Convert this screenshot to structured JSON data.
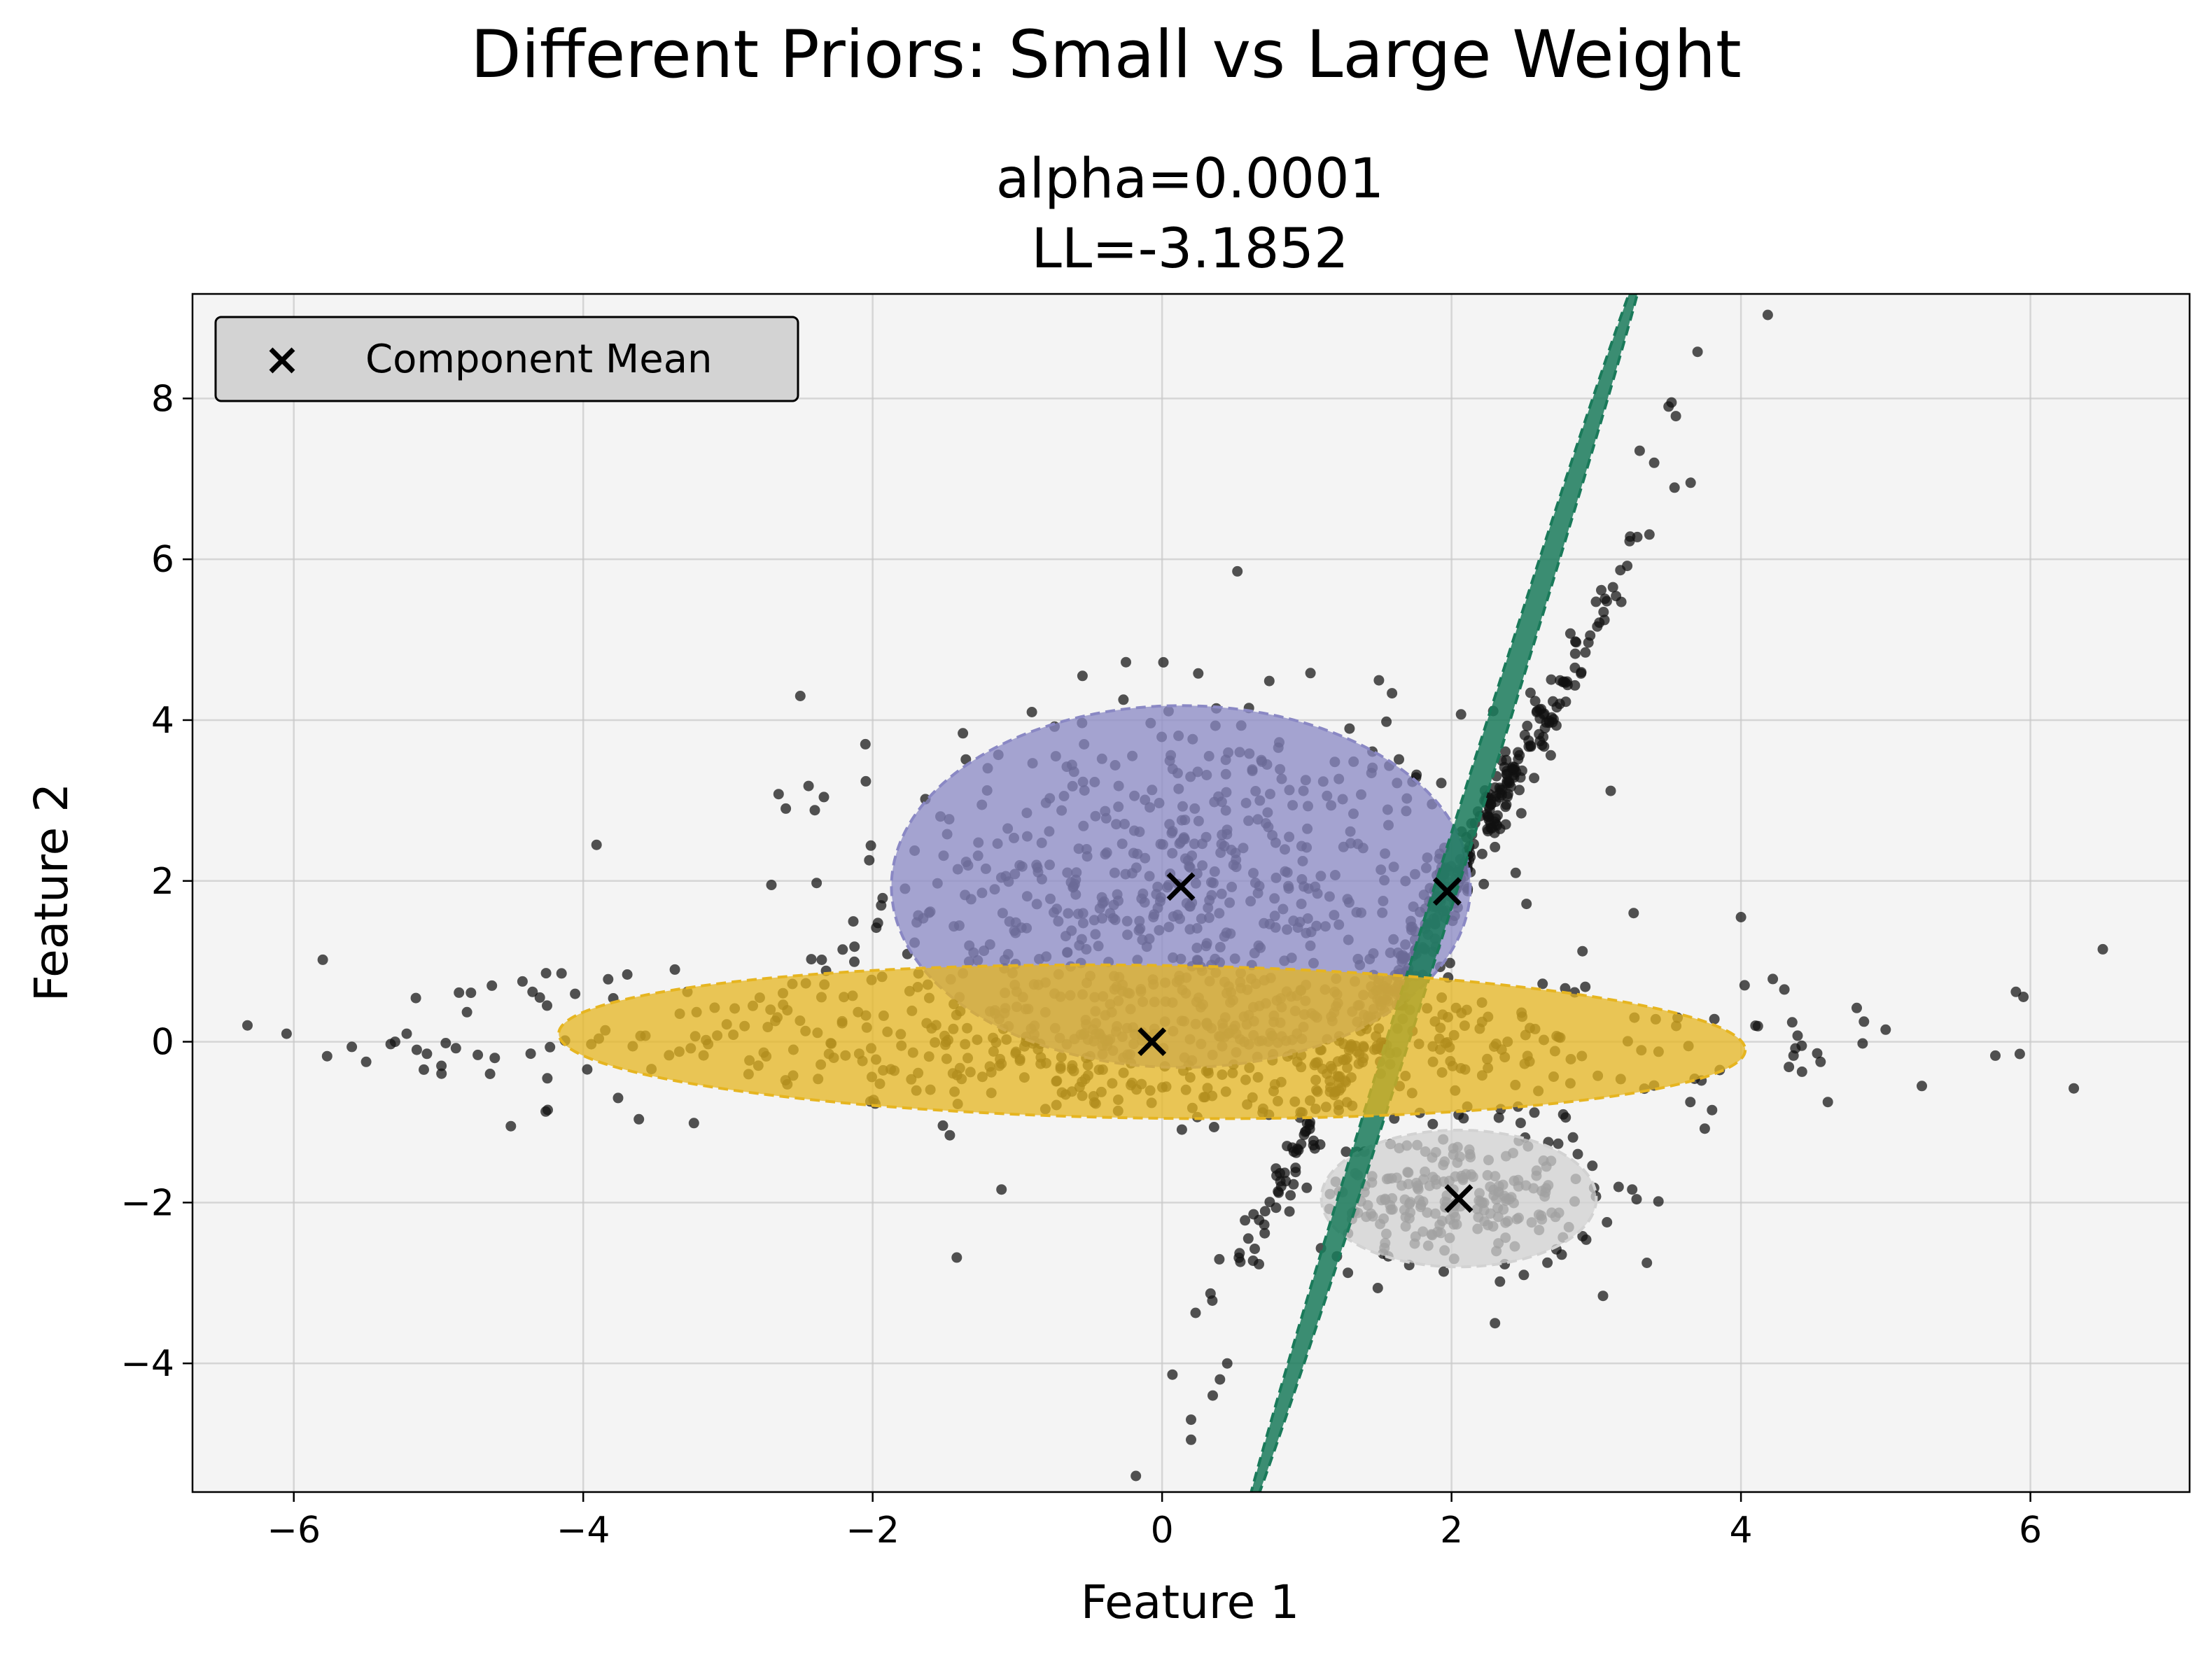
{
  "figure": {
    "suptitle": "Different Priors: Small vs Large Weight"
  },
  "chart_data": {
    "type": "scatter",
    "title_line1": "alpha=0.0001",
    "title_line2": "LL=-3.1852",
    "xlabel": "Feature 1",
    "ylabel": "Feature 2",
    "xlim": [
      -6.7,
      7.1
    ],
    "ylim": [
      -5.6,
      9.3
    ],
    "xticks": [
      -6,
      -4,
      -2,
      0,
      2,
      4,
      6
    ],
    "yticks": [
      -4,
      -2,
      0,
      2,
      4,
      6,
      8
    ],
    "grid": true,
    "legend": {
      "placement": "top-left",
      "entries": [
        "Component Mean"
      ]
    },
    "colors": {
      "plot_background": "#f4f4f4",
      "points": "#111111",
      "component_purple": "#8a88c4",
      "component_green": "#1a7a5a",
      "component_yellow": "#e6b520",
      "component_gray": "#d2d2d2",
      "legend_background": "#d3d3d3"
    },
    "components": [
      {
        "name": "purple",
        "mean": [
          0.13,
          1.93
        ],
        "width": 4.0,
        "height": 4.5,
        "angle_deg": 0
      },
      {
        "name": "gray",
        "mean": [
          2.05,
          -1.95
        ],
        "width": 1.9,
        "height": 1.7,
        "angle_deg": 0
      },
      {
        "name": "green",
        "mean": [
          1.95,
          1.85
        ],
        "width": 9.3,
        "height": 0.28,
        "angle_deg": 72.5
      },
      {
        "name": "yellow",
        "mean": [
          -0.07,
          0.0
        ],
        "width": 8.2,
        "height": 1.9,
        "angle_deg": -0.8
      }
    ],
    "component_means": [
      [
        0.13,
        1.93
      ],
      [
        1.97,
        1.87
      ],
      [
        -0.07,
        0.0
      ],
      [
        2.05,
        -1.95
      ]
    ],
    "outlier_points": [
      [
        -6.05,
        0.1
      ],
      [
        -5.8,
        1.02
      ],
      [
        -5.77,
        -0.18
      ],
      [
        -5.5,
        -0.25
      ],
      [
        -5.3,
        0.0
      ],
      [
        -5.22,
        0.1
      ],
      [
        -5.15,
        -0.1
      ],
      [
        -5.08,
        -0.15
      ],
      [
        -4.98,
        -0.3
      ],
      [
        -4.88,
        -0.08
      ],
      [
        -4.5,
        -1.05
      ],
      [
        -4.42,
        0.75
      ],
      [
        -4.35,
        0.62
      ],
      [
        -4.3,
        0.55
      ],
      [
        -4.25,
        0.45
      ],
      [
        -4.15,
        0.85
      ],
      [
        -2.5,
        4.3
      ],
      [
        -2.65,
        3.08
      ],
      [
        -2.6,
        2.9
      ],
      [
        -2.4,
        2.88
      ],
      [
        -2.7,
        1.95
      ],
      [
        -2.05,
        3.7
      ],
      [
        3.7,
        8.58
      ],
      [
        3.52,
        7.95
      ],
      [
        3.55,
        7.78
      ],
      [
        3.5,
        7.9
      ],
      [
        3.3,
        7.35
      ],
      [
        3.4,
        7.2
      ],
      [
        0.52,
        5.85
      ],
      [
        3.1,
        3.12
      ],
      [
        4.0,
        1.55
      ],
      [
        4.1,
        0.2
      ],
      [
        4.22,
        0.78
      ],
      [
        4.3,
        0.65
      ],
      [
        4.42,
        -0.05
      ],
      [
        4.55,
        -0.25
      ],
      [
        4.6,
        -0.75
      ],
      [
        4.8,
        0.42
      ],
      [
        4.85,
        0.25
      ],
      [
        5.0,
        0.15
      ],
      [
        5.25,
        -0.55
      ],
      [
        5.9,
        0.62
      ],
      [
        6.3,
        -0.58
      ],
      [
        6.5,
        1.15
      ],
      [
        3.35,
        -2.75
      ],
      [
        2.3,
        -3.5
      ],
      [
        0.2,
        -4.7
      ],
      [
        0.2,
        -4.95
      ],
      [
        0.35,
        -4.4
      ],
      [
        0.4,
        -4.2
      ],
      [
        0.45,
        -4.0
      ],
      [
        -0.9,
        4.1
      ],
      [
        -0.55,
        4.55
      ],
      [
        -0.25,
        4.72
      ],
      [
        0.25,
        4.58
      ],
      [
        0.6,
        4.15
      ],
      [
        1.55,
        3.98
      ],
      [
        3.75,
        -1.08
      ],
      [
        3.8,
        -0.85
      ],
      [
        3.65,
        -0.75
      ]
    ]
  }
}
